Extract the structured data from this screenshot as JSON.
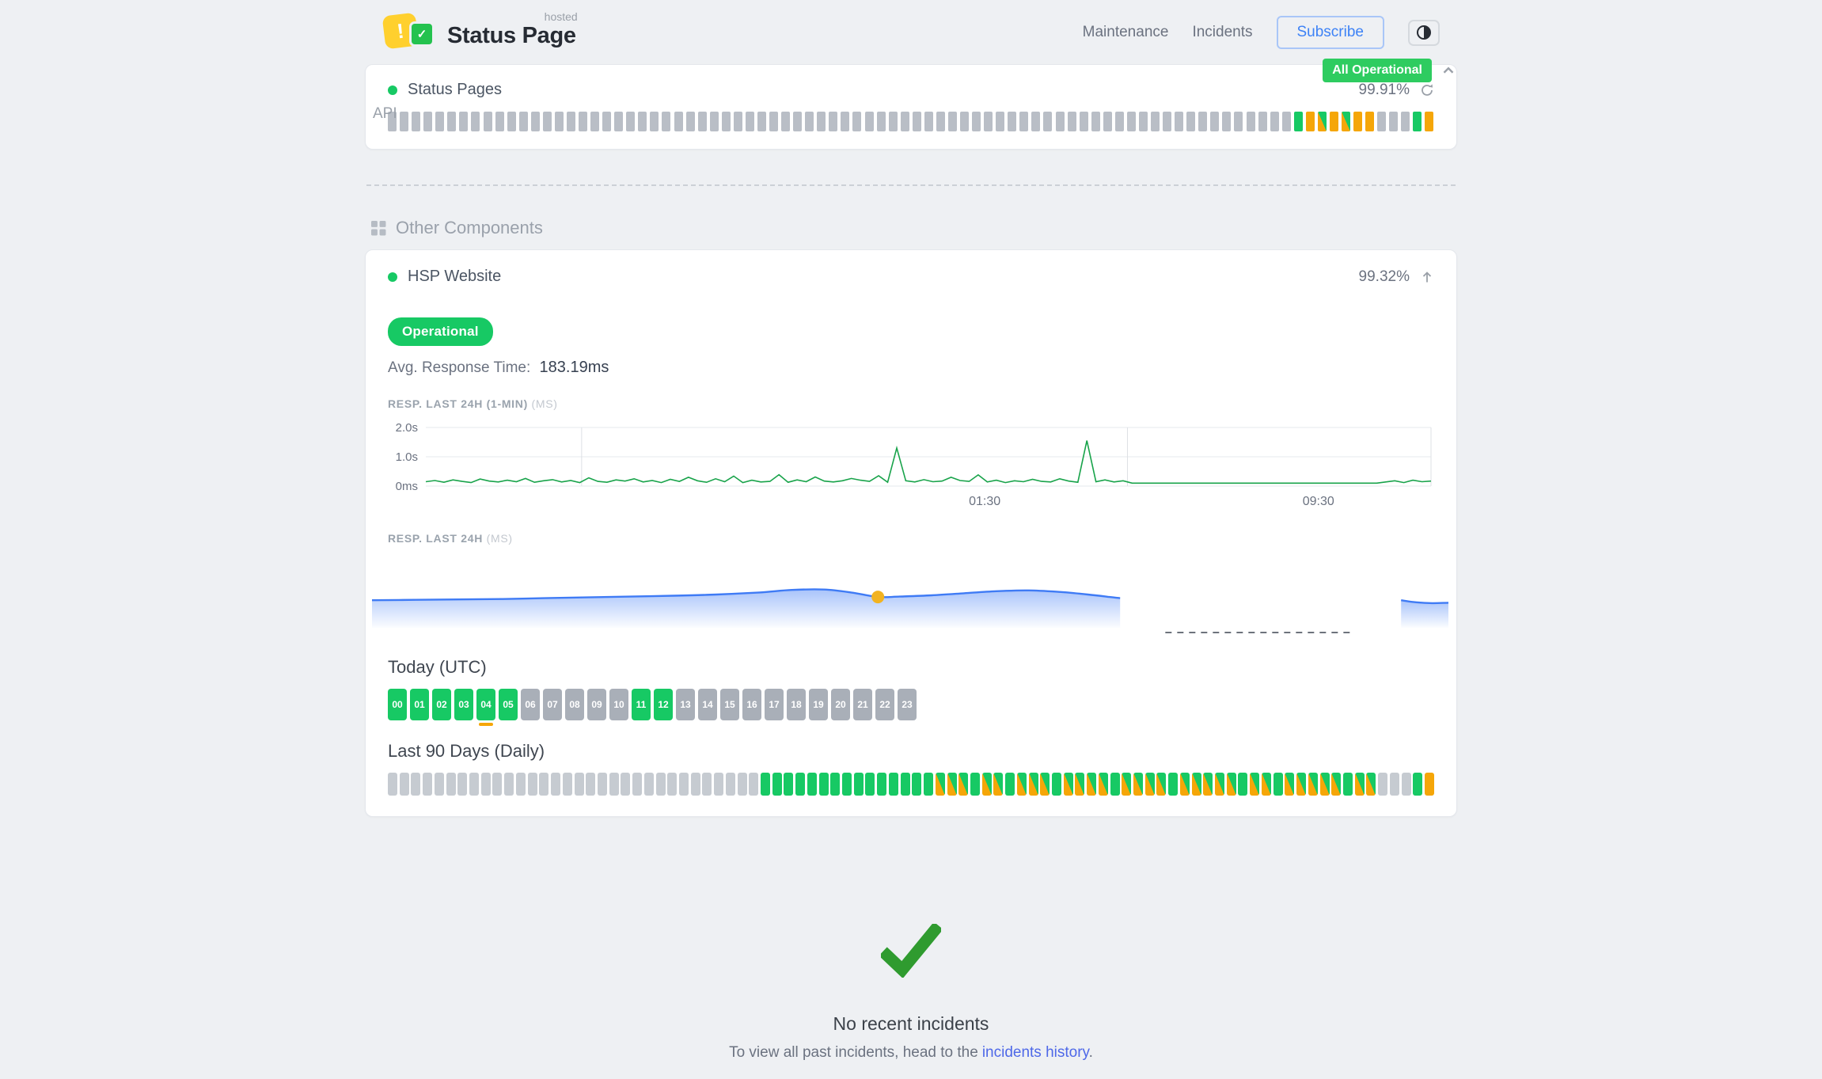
{
  "header": {
    "brand": {
      "hosted": "hosted",
      "name": "Status Page",
      "exclaim": "!",
      "check": "✓"
    },
    "nav": [
      {
        "label": "Maintenance"
      },
      {
        "label": "Incidents"
      }
    ],
    "subscribe": "Subscribe",
    "overall_status": "All Operational"
  },
  "sections": {
    "api": {
      "title": "API"
    },
    "other": {
      "title": "Other Components"
    }
  },
  "api_component": {
    "name": "Status Pages",
    "uptime": "99.91%",
    "bars": "eeeeeeeeeeeeeeeeeeeeeeeeeeeeeeeeeeeeeeeeeeeeeeeeeeeeeeeeeeeeeeeeeeeeeeeeeeeeudpdpddeeeud"
  },
  "website_component": {
    "name": "HSP Website",
    "uptime": "99.32%",
    "status_label": "Operational",
    "avg_label": "Avg. Response Time:",
    "avg_value": "183.19ms",
    "chart1": {
      "label": "RESP. LAST 24H (1-MIN)",
      "unit": "(MS)",
      "type": "line",
      "ylim_ms": [
        0,
        2000
      ],
      "yticks": [
        {
          "label": "2.0s",
          "v": 2000
        },
        {
          "label": "1.0s",
          "v": 1000
        },
        {
          "label": "0ms",
          "v": 0
        }
      ],
      "xticks": [
        {
          "label": "01:30",
          "f": 0.556
        },
        {
          "label": "09:30",
          "f": 0.888
        }
      ],
      "vlines": [
        0.155,
        0.698,
        1.0
      ],
      "points_ms": [
        150,
        190,
        130,
        210,
        160,
        120,
        240,
        170,
        140,
        200,
        150,
        260,
        130,
        180,
        220,
        140,
        190,
        120,
        280,
        160,
        130,
        210,
        170,
        250,
        140,
        190,
        120,
        230,
        160,
        300,
        180,
        130,
        250,
        150,
        340,
        120,
        200,
        140,
        160,
        390,
        130,
        210,
        150,
        310,
        170,
        140,
        180,
        260,
        200,
        160,
        350,
        130,
        1300,
        180,
        140,
        220,
        150,
        170,
        300,
        190,
        160,
        380,
        140,
        200,
        120,
        180,
        150,
        230,
        160,
        140,
        250,
        170,
        130,
        1550,
        150,
        210,
        140,
        180,
        100,
        100,
        100,
        100,
        100,
        100,
        100,
        100,
        100,
        100,
        100,
        100,
        100,
        100,
        100,
        100,
        100,
        100,
        100,
        100,
        100,
        100,
        100,
        100,
        100,
        100,
        100,
        100,
        140,
        180,
        120,
        200,
        150,
        170
      ]
    },
    "chart2": {
      "label": "RESP. LAST 24H",
      "unit": "(MS)",
      "type": "area",
      "series": [
        [
          0,
          0.56
        ],
        [
          0.04,
          0.555
        ],
        [
          0.08,
          0.55
        ],
        [
          0.12,
          0.545
        ],
        [
          0.16,
          0.535
        ],
        [
          0.2,
          0.525
        ],
        [
          0.24,
          0.515
        ],
        [
          0.28,
          0.505
        ],
        [
          0.32,
          0.49
        ],
        [
          0.36,
          0.465
        ],
        [
          0.39,
          0.435
        ],
        [
          0.42,
          0.43
        ],
        [
          0.445,
          0.465
        ],
        [
          0.47,
          0.52
        ],
        [
          0.49,
          0.515
        ],
        [
          0.52,
          0.5
        ],
        [
          0.55,
          0.475
        ],
        [
          0.58,
          0.45
        ],
        [
          0.61,
          0.44
        ],
        [
          0.64,
          0.46
        ],
        [
          0.665,
          0.49
        ],
        [
          0.685,
          0.52
        ],
        [
          0.695,
          0.535
        ]
      ],
      "series2": [
        [
          0.956,
          0.56
        ],
        [
          0.97,
          0.585
        ],
        [
          0.985,
          0.595
        ],
        [
          1.0,
          0.59
        ]
      ],
      "gap_dash": {
        "from": 0.737,
        "to": 0.91
      },
      "dot": {
        "f": 0.47,
        "v": 0.52
      }
    },
    "today_title": "Today (UTC)",
    "hours": {
      "labels": [
        "00",
        "01",
        "02",
        "03",
        "04",
        "05",
        "06",
        "07",
        "08",
        "09",
        "10",
        "11",
        "12",
        "13",
        "14",
        "15",
        "16",
        "17",
        "18",
        "19",
        "20",
        "21",
        "22",
        "23"
      ],
      "statuses": "uuuuuueeeeeuueeeeeeeeeee",
      "marker_index": 4
    },
    "last90_title": "Last 90 Days (Daily)",
    "days": "eeeeeeeeeeeeeeeeeeeeeeeeeeeeeeeeuuuuuuuuuuuuuuupppuppupppuppppuppppupppppuppupppppuppeeeud"
  },
  "footer": {
    "title": "No recent incidents",
    "text_before": "To view all past incidents, head to the",
    "link": "incidents history",
    "text_after": "."
  },
  "icons": {
    "theme_toggle": "half-filled-circle",
    "chevron_up": "chevron-up",
    "history": "refresh-arrow",
    "expand": "arrow-up",
    "grid": "grid-4-squares",
    "no_incidents": "big-checkmark"
  },
  "colors": {
    "green": "#17c964",
    "green_badge": "#2ecc60",
    "orange": "#f5a608",
    "gray_small": "#b9bec6",
    "gray_hour": "#a9afb8",
    "gray_day": "#c6cbd1",
    "green_line": "#18a34a",
    "blue_line": "#3f7bf5",
    "dot": "#f2b321",
    "link": "#4e68e8",
    "check": "#2f9b2f"
  }
}
